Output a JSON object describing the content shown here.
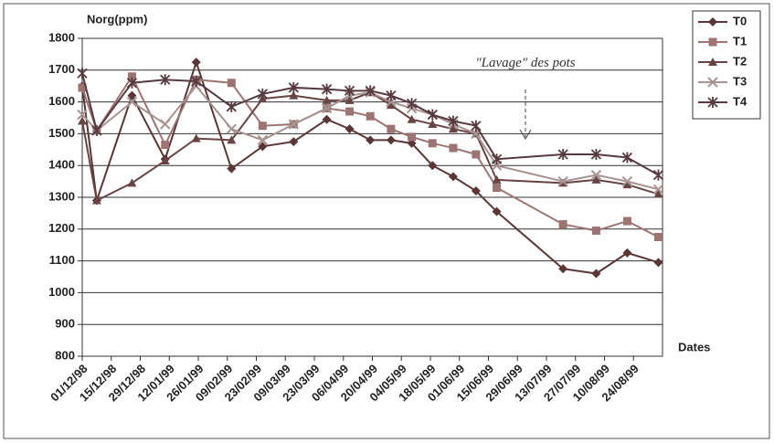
{
  "chart_data": {
    "type": "line",
    "ylabel": "Norg(ppm)",
    "xlabel": "Dates",
    "annotation": "\"Lavage\" des pots",
    "x": [
      "01/12/98",
      "08/12/98",
      "25/12/98",
      "10/01/99",
      "25/01/99",
      "11/02/99",
      "26/02/99",
      "13/03/99",
      "29/03/99",
      "09/04/99",
      "19/04/99",
      "29/04/99",
      "09/05/99",
      "19/05/99",
      "29/05/99",
      "09/06/99",
      "19/06/99",
      "21/07/99",
      "06/08/99",
      "21/08/99",
      "05/09/99"
    ],
    "xlim": [
      "01/12/98",
      "07/09/99"
    ],
    "xticks": [
      "01/12/98",
      "15/12/98",
      "29/12/98",
      "12/01/99",
      "26/01/99",
      "09/02/99",
      "23/02/99",
      "09/03/99",
      "23/03/99",
      "06/04/99",
      "20/04/99",
      "04/05/99",
      "18/05/99",
      "01/06/99",
      "15/06/99",
      "29/06/99",
      "13/07/99",
      "27/07/99",
      "10/08/99",
      "24/08/99"
    ],
    "ylim": [
      800,
      1800
    ],
    "yticks": [
      800,
      900,
      1000,
      1100,
      1200,
      1300,
      1400,
      1500,
      1600,
      1700,
      1800
    ],
    "grid": true,
    "legend": "right",
    "series": [
      {
        "name": "T0",
        "color": "#5a3636",
        "marker": "diamond",
        "values": [
          1650,
          1290,
          1620,
          1420,
          1725,
          1390,
          1460,
          1475,
          1545,
          1515,
          1480,
          1480,
          1470,
          1400,
          1365,
          1320,
          1255,
          1075,
          1060,
          1125,
          1095
        ]
      },
      {
        "name": "T1",
        "color": "#9c7474",
        "marker": "square",
        "values": [
          1645,
          1510,
          1680,
          1465,
          1670,
          1660,
          1525,
          1530,
          1580,
          1570,
          1555,
          1515,
          1490,
          1470,
          1455,
          1435,
          1330,
          1215,
          1195,
          1225,
          1175
        ]
      },
      {
        "name": "T2",
        "color": "#684444",
        "marker": "triangle",
        "values": [
          1540,
          1290,
          1345,
          1415,
          1485,
          1480,
          1610,
          1620,
          1605,
          1605,
          1630,
          1590,
          1545,
          1530,
          1515,
          1500,
          1355,
          1345,
          1355,
          1340,
          1310
        ]
      },
      {
        "name": "T3",
        "color": "#a89292",
        "marker": "cross",
        "values": [
          1560,
          1510,
          1600,
          1530,
          1650,
          1515,
          1480,
          1530,
          1580,
          1620,
          1630,
          1600,
          1580,
          1560,
          1530,
          1500,
          1400,
          1350,
          1370,
          1350,
          1325
        ]
      },
      {
        "name": "T4",
        "color": "#573a40",
        "marker": "star",
        "values": [
          1690,
          1510,
          1660,
          1670,
          1665,
          1585,
          1625,
          1645,
          1640,
          1635,
          1635,
          1620,
          1595,
          1560,
          1540,
          1525,
          1420,
          1435,
          1435,
          1425,
          1370
        ]
      }
    ]
  }
}
